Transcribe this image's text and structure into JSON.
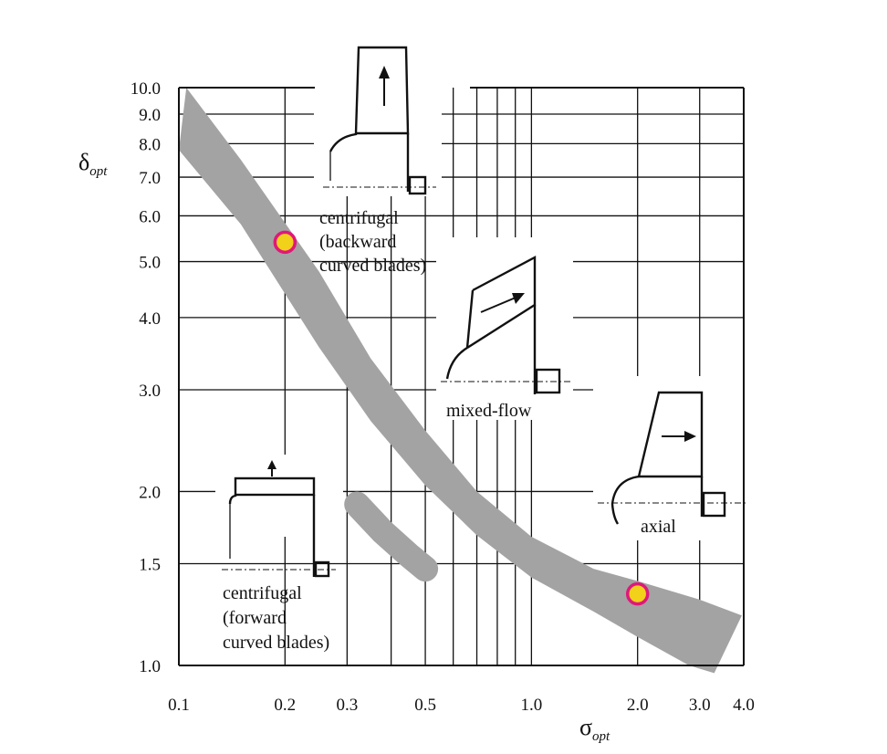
{
  "chart_data": {
    "type": "scatter",
    "title": "",
    "xlabel": {
      "main": "σ",
      "sub": "opt"
    },
    "ylabel": {
      "main": "δ",
      "sub": "opt"
    },
    "x_scale": "log",
    "y_scale": "log",
    "xlim": [
      0.1,
      4.0
    ],
    "ylim": [
      1.0,
      10.0
    ],
    "grid": true,
    "x_ticks": [
      {
        "value": 0.1,
        "label": "0.1"
      },
      {
        "value": 0.2,
        "label": "0.2"
      },
      {
        "value": 0.3,
        "label": "0.3"
      },
      {
        "value": 0.5,
        "label": "0.5"
      },
      {
        "value": 1.0,
        "label": "1.0"
      },
      {
        "value": 2.0,
        "label": "2.0"
      },
      {
        "value": 3.0,
        "label": "3.0"
      },
      {
        "value": 4.0,
        "label": "4.0"
      }
    ],
    "x_minor_grid": [
      0.4,
      0.6,
      0.7,
      0.8,
      0.9
    ],
    "y_ticks": [
      {
        "value": 1.0,
        "label": "1.0"
      },
      {
        "value": 1.5,
        "label": "1.5"
      },
      {
        "value": 2.0,
        "label": "2.0"
      },
      {
        "value": 3.0,
        "label": "3.0"
      },
      {
        "value": 4.0,
        "label": "4.0"
      },
      {
        "value": 5.0,
        "label": "5.0"
      },
      {
        "value": 6.0,
        "label": "6.0"
      },
      {
        "value": 7.0,
        "label": "7.0"
      },
      {
        "value": 8.0,
        "label": "8.0"
      },
      {
        "value": 9.0,
        "label": "9.0"
      },
      {
        "value": 10.0,
        "label": "10.0"
      }
    ],
    "band_main": {
      "upper": [
        [
          0.105,
          10.0
        ],
        [
          0.15,
          7.5
        ],
        [
          0.25,
          4.8
        ],
        [
          0.35,
          3.4
        ],
        [
          0.5,
          2.55
        ],
        [
          0.7,
          2.0
        ],
        [
          1.0,
          1.67
        ],
        [
          1.5,
          1.47
        ],
        [
          2.0,
          1.4
        ],
        [
          3.0,
          1.3
        ],
        [
          3.95,
          1.22
        ]
      ],
      "lower": [
        [
          0.1,
          7.8
        ],
        [
          0.15,
          5.8
        ],
        [
          0.25,
          3.55
        ],
        [
          0.35,
          2.65
        ],
        [
          0.5,
          2.05
        ],
        [
          0.7,
          1.68
        ],
        [
          1.0,
          1.42
        ],
        [
          1.5,
          1.24
        ],
        [
          2.0,
          1.12
        ],
        [
          2.8,
          1.0
        ],
        [
          3.3,
          0.97
        ]
      ]
    },
    "band_secondary": [
      [
        0.32,
        1.9
      ],
      [
        0.38,
        1.7
      ],
      [
        0.45,
        1.55
      ],
      [
        0.5,
        1.47
      ]
    ],
    "highlight_points": [
      {
        "x": 0.2,
        "y": 5.4,
        "color": "#f2d11a",
        "stroke": "#e0187a"
      },
      {
        "x": 2.0,
        "y": 1.33,
        "color": "#f2d11a",
        "stroke": "#e0187a"
      }
    ],
    "band_color": "#a3a3a3",
    "annotations": [
      {
        "id": "centrifugal-backward",
        "lines": [
          "centrifugal",
          "(backward",
          "curved blades)"
        ]
      },
      {
        "id": "mixed-flow",
        "lines": [
          "mixed-flow"
        ]
      },
      {
        "id": "axial",
        "lines": [
          "axial"
        ]
      },
      {
        "id": "centrifugal-forward",
        "lines": [
          "centrifugal",
          "(forward",
          "curved blades)"
        ]
      }
    ]
  }
}
